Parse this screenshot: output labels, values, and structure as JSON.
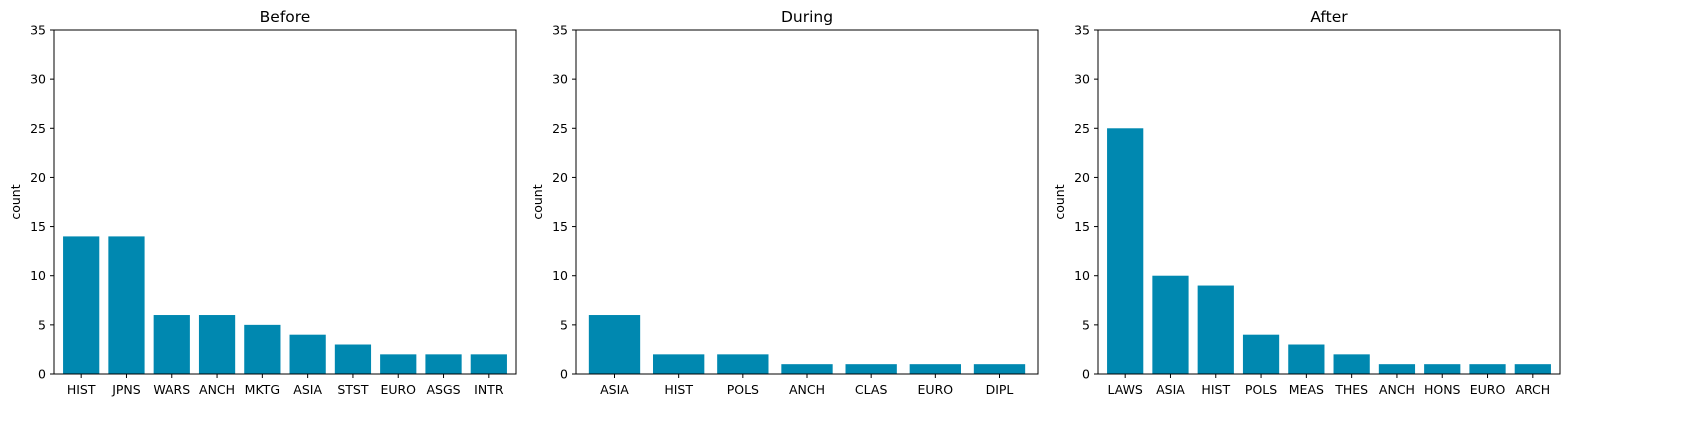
{
  "chart_data": [
    {
      "type": "bar",
      "title": "Before",
      "xlabel": "",
      "ylabel": "count",
      "ylim": [
        0,
        35
      ],
      "yticks": [
        0,
        5,
        10,
        15,
        20,
        25,
        30,
        35
      ],
      "categories": [
        "HIST",
        "JPNS",
        "WARS",
        "ANCH",
        "MKTG",
        "ASIA",
        "STST",
        "EURO",
        "ASGS",
        "INTR"
      ],
      "values": [
        14,
        14,
        6,
        6,
        5,
        4,
        3,
        2,
        2,
        2
      ],
      "color": "#0088b0",
      "grid": false
    },
    {
      "type": "bar",
      "title": "During",
      "xlabel": "",
      "ylabel": "count",
      "ylim": [
        0,
        35
      ],
      "yticks": [
        0,
        5,
        10,
        15,
        20,
        25,
        30,
        35
      ],
      "categories": [
        "ASIA",
        "HIST",
        "POLS",
        "ANCH",
        "CLAS",
        "EURO",
        "DIPL"
      ],
      "values": [
        6,
        2,
        2,
        1,
        1,
        1,
        1
      ],
      "color": "#0088b0",
      "grid": false
    },
    {
      "type": "bar",
      "title": "After",
      "xlabel": "",
      "ylabel": "count",
      "ylim": [
        0,
        35
      ],
      "yticks": [
        0,
        5,
        10,
        15,
        20,
        25,
        30,
        35
      ],
      "categories": [
        "LAWS",
        "ASIA",
        "HIST",
        "POLS",
        "MEAS",
        "THES",
        "ANCH",
        "HONS",
        "EURO",
        "ARCH"
      ],
      "values": [
        25,
        10,
        9,
        4,
        3,
        2,
        1,
        1,
        1,
        1
      ],
      "color": "#0088b0",
      "grid": false
    }
  ]
}
